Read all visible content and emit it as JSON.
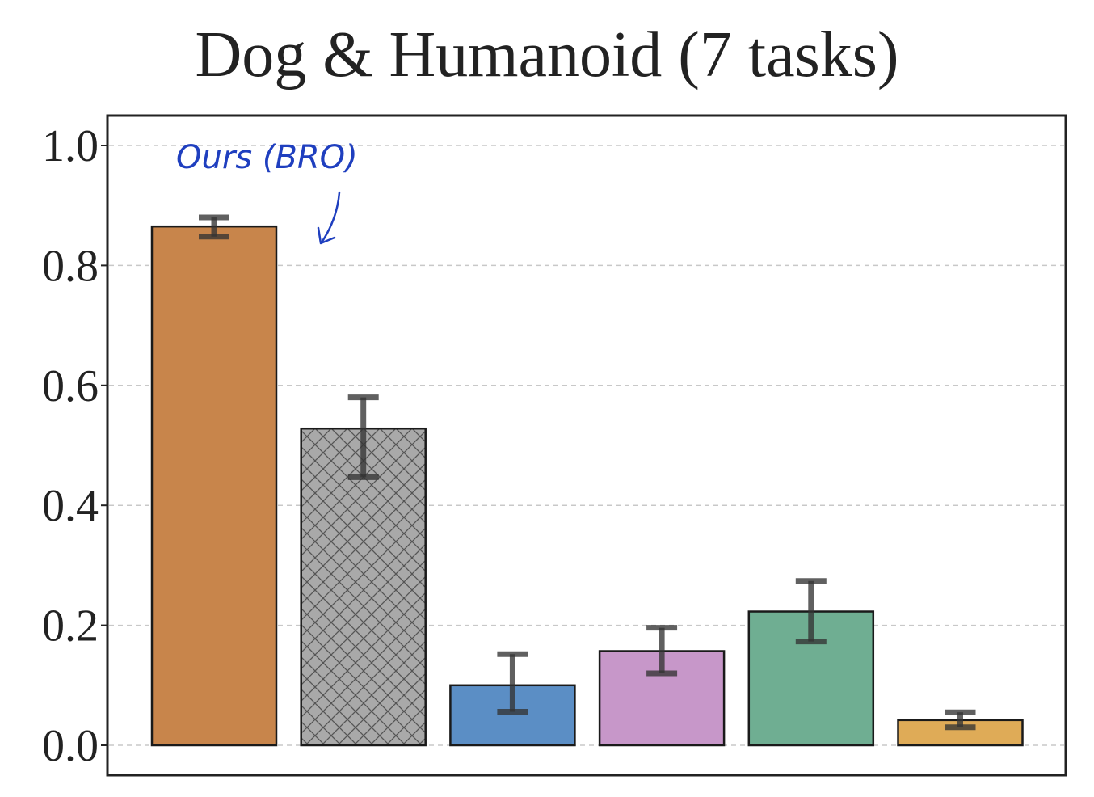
{
  "chart_data": {
    "type": "bar",
    "title": "Dog & Humanoid (7 tasks)",
    "xlabel": "",
    "ylabel": "",
    "ylim": [
      0,
      1.05
    ],
    "yticks": [
      "0.0",
      "0.2",
      "0.4",
      "0.6",
      "0.8",
      "1.0"
    ],
    "grid": "horizontal dashed",
    "bars": [
      {
        "value": 0.865,
        "err_low": 0.848,
        "err_high": 0.88,
        "color": "#c8854b",
        "hatch": false
      },
      {
        "value": 0.528,
        "err_low": 0.447,
        "err_high": 0.58,
        "color": "#a9a9a9",
        "hatch": true
      },
      {
        "value": 0.1,
        "err_low": 0.056,
        "err_high": 0.152,
        "color": "#5b8ec5",
        "hatch": false
      },
      {
        "value": 0.157,
        "err_low": 0.12,
        "err_high": 0.196,
        "color": "#c797c9",
        "hatch": false
      },
      {
        "value": 0.223,
        "err_low": 0.173,
        "err_high": 0.274,
        "color": "#6fae92",
        "hatch": false
      },
      {
        "value": 0.042,
        "err_low": 0.03,
        "err_high": 0.055,
        "color": "#dfab57",
        "hatch": false
      }
    ],
    "annotation": {
      "text": "Ours (BRO)",
      "style": "handwritten",
      "color": "#1f3fbf"
    }
  }
}
